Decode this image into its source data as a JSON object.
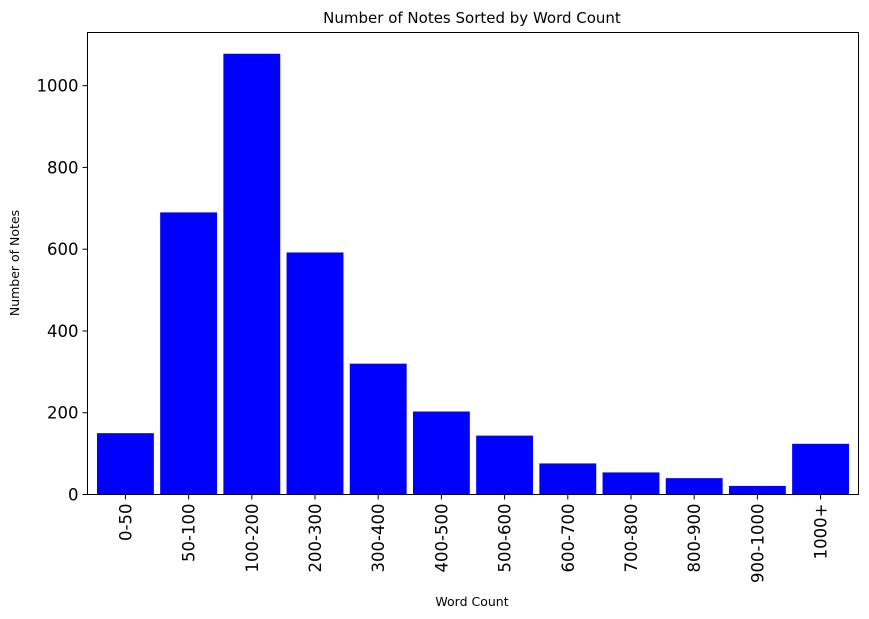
{
  "chart_data": {
    "type": "bar",
    "title": "Number of Notes Sorted by Word Count",
    "xlabel": "Word Count",
    "ylabel": "Number of Notes",
    "categories": [
      "0-50",
      "50-100",
      "100-200",
      "200-300",
      "300-400",
      "400-500",
      "500-600",
      "600-700",
      "700-800",
      "800-900",
      "900-1000",
      "1000+"
    ],
    "values": [
      150,
      690,
      1078,
      592,
      320,
      203,
      144,
      76,
      54,
      40,
      21,
      124
    ],
    "ylim": [
      0,
      1130
    ],
    "yticks": [
      0,
      200,
      400,
      600,
      800,
      1000
    ],
    "bar_color": "#0000ff",
    "grid": false,
    "legend": "none"
  }
}
